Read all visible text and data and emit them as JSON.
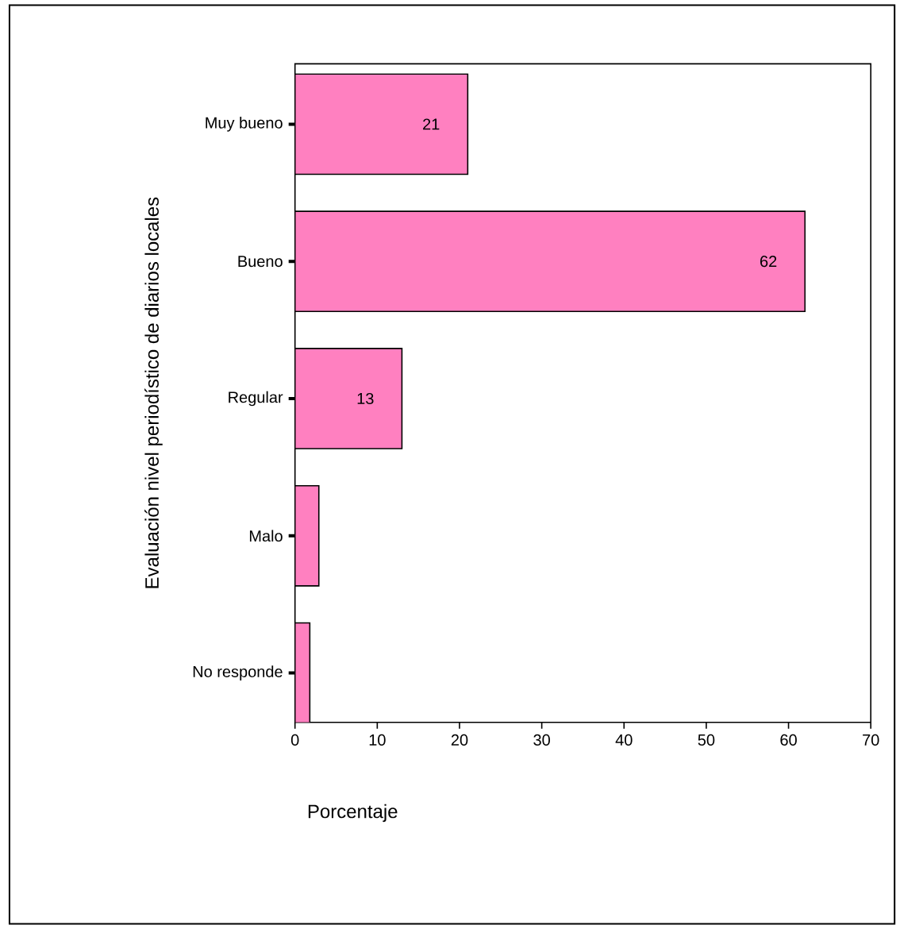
{
  "chart_data": {
    "type": "bar",
    "orientation": "horizontal",
    "xlabel": "Porcentaje",
    "ylabel": "Evaluación nivel periodístico de diarios locales",
    "categories": [
      "Muy bueno",
      "Bueno",
      "Regular",
      "Malo",
      "No responde"
    ],
    "values": [
      21,
      62,
      13,
      2.9,
      1.8
    ],
    "value_labels": [
      "21",
      "62",
      "13",
      null,
      null
    ],
    "color": "#ff80c0",
    "xlim": [
      0,
      70
    ],
    "xticks": [
      0,
      10,
      20,
      30,
      40,
      50,
      60,
      70
    ],
    "grid": false
  }
}
